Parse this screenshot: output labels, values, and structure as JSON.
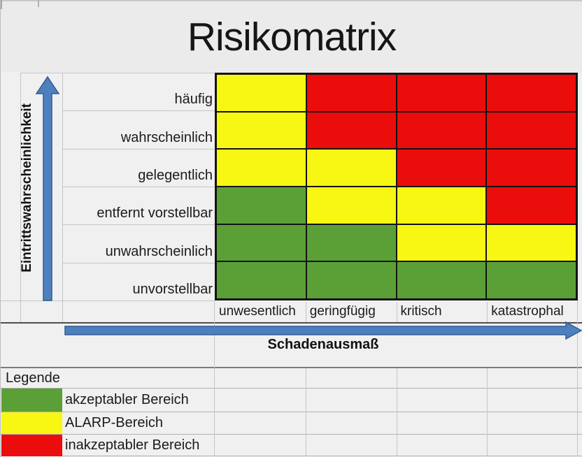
{
  "title": "Risikomatrix",
  "colors": {
    "green": "#5AA037",
    "yellow": "#F8F613",
    "red": "#EB0C0C",
    "arrow_fill": "#4E80BD",
    "arrow_stroke": "#2E5C94",
    "grid_light": "#C6C5C5",
    "cell_border": "#141414"
  },
  "chart_data": {
    "type": "heatmap",
    "title": "Risikomatrix",
    "x_axis_label": "Schadenausmaß",
    "y_axis_label": "Eintrittswahrscheinlichkeit",
    "x_categories": [
      "unwesentlich",
      "geringfügig",
      "kritisch",
      "katastrophal"
    ],
    "y_categories_top_to_bottom": [
      "häufig",
      "wahrscheinlich",
      "gelegentlich",
      "entfernt vorstellbar",
      "unwahrscheinlich",
      "unvorstellbar"
    ],
    "cells_top_to_bottom": [
      [
        "yellow",
        "red",
        "red",
        "red"
      ],
      [
        "yellow",
        "red",
        "red",
        "red"
      ],
      [
        "yellow",
        "yellow",
        "red",
        "red"
      ],
      [
        "green",
        "yellow",
        "yellow",
        "red"
      ],
      [
        "green",
        "green",
        "yellow",
        "yellow"
      ],
      [
        "green",
        "green",
        "green",
        "green"
      ]
    ],
    "legend_position": "bottom-left",
    "grid": true
  },
  "legend": {
    "header": "Legende",
    "items": [
      {
        "key": "green",
        "label": "akzeptabler Bereich"
      },
      {
        "key": "yellow",
        "label": "ALARP-Bereich"
      },
      {
        "key": "red",
        "label": "inakzeptabler Bereich"
      }
    ]
  },
  "x_axis": {
    "label": "Schadenausmaß"
  },
  "y_axis": {
    "label": "Eintrittswahrscheinlichkeit"
  }
}
